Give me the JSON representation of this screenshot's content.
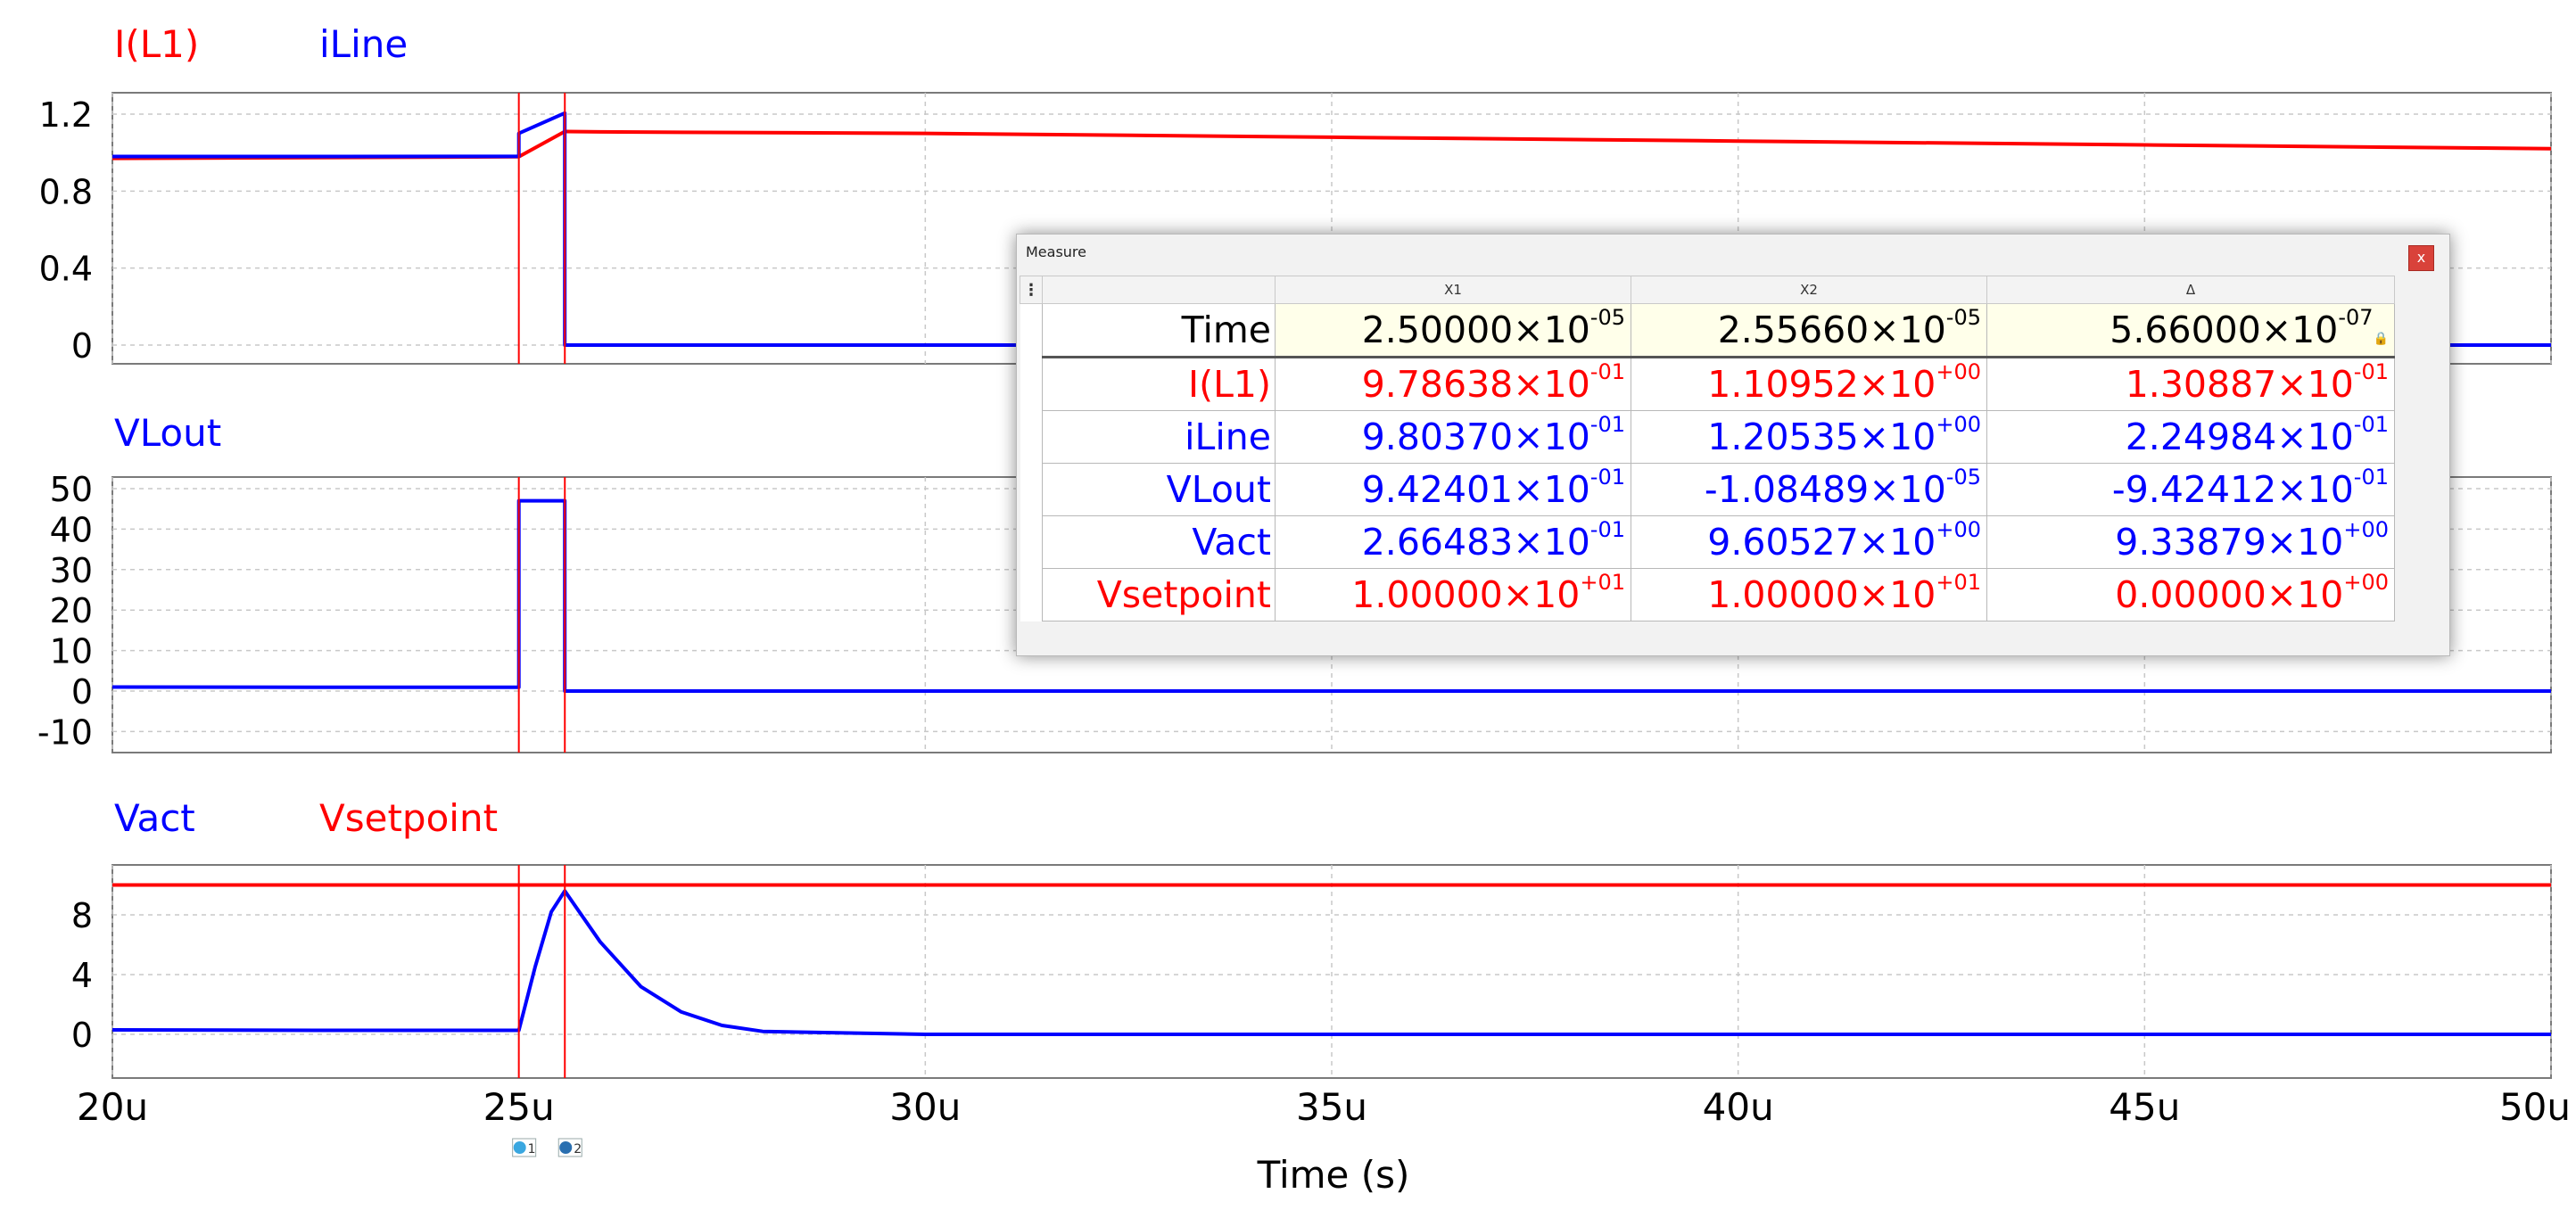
{
  "axis_title": "Time (s)",
  "x_ticks": [
    "20u",
    "25u",
    "30u",
    "35u",
    "40u",
    "45u",
    "50u"
  ],
  "cursor_markers": [
    "1",
    "2"
  ],
  "colors": {
    "red": "#ff0000",
    "blue": "#0000ff",
    "cursor": "#ff0000",
    "grid": "#c8c8c8"
  },
  "chart_data": [
    {
      "type": "line",
      "legend": [
        "I(L1)",
        "iLine"
      ],
      "x_unit": "s",
      "xlim": [
        2e-05,
        5e-05
      ],
      "ylim": [
        -0.1,
        1.3
      ],
      "y_ticks": [
        "1.2",
        "0.8",
        "0.4",
        "0"
      ],
      "y_tick_values": [
        1.2,
        0.8,
        0.4,
        0
      ],
      "series": [
        {
          "name": "I(L1)",
          "color": "#ff0000",
          "x": [
            2e-05,
            2.5e-05,
            2.5566e-05,
            2.6e-05,
            3e-05,
            3.5e-05,
            4e-05,
            4.5e-05,
            5e-05
          ],
          "y": [
            0.97,
            0.9786,
            1.1095,
            1.108,
            1.1,
            1.08,
            1.06,
            1.04,
            1.02
          ]
        },
        {
          "name": "iLine",
          "color": "#0000ff",
          "x": [
            2e-05,
            2.5e-05,
            2.5e-05,
            2.5566e-05,
            2.5566e-05,
            3e-05,
            5e-05
          ],
          "y": [
            0.98,
            0.9804,
            1.1,
            1.2054,
            0,
            0,
            0
          ]
        }
      ]
    },
    {
      "type": "line",
      "legend": [
        "VLout"
      ],
      "x_unit": "s",
      "xlim": [
        2e-05,
        5e-05
      ],
      "ylim": [
        -15,
        52
      ],
      "y_ticks": [
        "50",
        "40",
        "30",
        "20",
        "10",
        "0",
        "-10"
      ],
      "y_tick_values": [
        50,
        40,
        30,
        20,
        10,
        0,
        -10
      ],
      "series": [
        {
          "name": "VLout",
          "color": "#0000ff",
          "x": [
            2e-05,
            2.25e-05,
            2.5e-05,
            2.5e-05,
            2.5566e-05,
            2.5566e-05,
            5e-05
          ],
          "y": [
            1.0,
            0.94,
            0.94,
            47,
            47,
            0,
            0
          ]
        }
      ]
    },
    {
      "type": "line",
      "legend": [
        "Vact",
        "Vsetpoint"
      ],
      "x_unit": "s",
      "xlim": [
        2e-05,
        5e-05
      ],
      "ylim": [
        -3,
        12
      ],
      "y_ticks": [
        "8",
        "4",
        "0"
      ],
      "y_tick_values": [
        8,
        4,
        0
      ],
      "series": [
        {
          "name": "Vact",
          "color": "#0000ff",
          "x": [
            2e-05,
            2.25e-05,
            2.5e-05,
            2.52e-05,
            2.54e-05,
            2.5566e-05,
            2.6e-05,
            2.65e-05,
            2.7e-05,
            2.75e-05,
            2.8e-05,
            3e-05,
            5e-05
          ],
          "y": [
            0.3,
            0.27,
            0.266,
            4.5,
            8.2,
            9.6,
            6.2,
            3.2,
            1.5,
            0.6,
            0.2,
            0.0,
            0.0
          ]
        },
        {
          "name": "Vsetpoint",
          "color": "#ff0000",
          "x": [
            2e-05,
            5e-05
          ],
          "y": [
            10,
            10
          ]
        }
      ]
    }
  ],
  "measure": {
    "title": "Measure",
    "close": "x",
    "menu": "⋮",
    "headers": [
      "X1",
      "X2",
      "Δ"
    ],
    "rows": [
      {
        "name": "Time",
        "color": "#000000",
        "x1": [
          "2.50000×10",
          "-05"
        ],
        "x2": [
          "2.55660×10",
          "-05"
        ],
        "d": [
          "5.66000×10",
          "-07"
        ]
      },
      {
        "name": "I(L1)",
        "color": "#ff0000",
        "x1": [
          "9.78638×10",
          "-01"
        ],
        "x2": [
          "1.10952×10",
          "+00"
        ],
        "d": [
          "1.30887×10",
          "-01"
        ]
      },
      {
        "name": "iLine",
        "color": "#0000ff",
        "x1": [
          "9.80370×10",
          "-01"
        ],
        "x2": [
          "1.20535×10",
          "+00"
        ],
        "d": [
          "2.24984×10",
          "-01"
        ]
      },
      {
        "name": "VLout",
        "color": "#0000ff",
        "x1": [
          "9.42401×10",
          "-01"
        ],
        "x2": [
          "-1.08489×10",
          "-05"
        ],
        "d": [
          "-9.42412×10",
          "-01"
        ]
      },
      {
        "name": "Vact",
        "color": "#0000ff",
        "x1": [
          "2.66483×10",
          "-01"
        ],
        "x2": [
          "9.60527×10",
          "+00"
        ],
        "d": [
          "9.33879×10",
          "+00"
        ]
      },
      {
        "name": "Vsetpoint",
        "color": "#ff0000",
        "x1": [
          "1.00000×10",
          "+01"
        ],
        "x2": [
          "1.00000×10",
          "+01"
        ],
        "d": [
          "0.00000×10",
          "+00"
        ]
      }
    ]
  }
}
